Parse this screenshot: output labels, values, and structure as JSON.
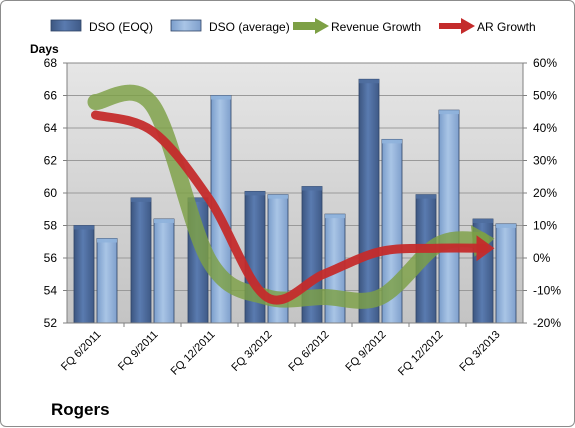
{
  "company": "Rogers",
  "chart_data": {
    "type": "bar",
    "categories": [
      "FQ 6/2011",
      "FQ 9/2011",
      "FQ 12/2011",
      "FQ 3/2012",
      "FQ 6/2012",
      "FQ 9/2012",
      "FQ 12/2012",
      "FQ 3/2013"
    ],
    "ylabel": "Days",
    "ylim": [
      52,
      68
    ],
    "y_ticks": [
      "52",
      "54",
      "56",
      "58",
      "60",
      "62",
      "64",
      "66",
      "68"
    ],
    "y2lim": [
      -20,
      60
    ],
    "y2_ticks": [
      "-20%",
      "-10%",
      "0%",
      "10%",
      "20%",
      "30%",
      "40%",
      "50%",
      "60%"
    ],
    "grid": true,
    "legend_position": "top",
    "series": [
      {
        "name": "DSO (EOQ)",
        "kind": "bar",
        "axis": "left",
        "color": "#4f6e9f",
        "values": [
          58.0,
          59.7,
          59.7,
          60.1,
          60.4,
          67.0,
          59.9,
          58.4
        ]
      },
      {
        "name": "DSO (average)",
        "kind": "bar",
        "axis": "left",
        "color": "#8fb2dc",
        "values": [
          57.2,
          58.4,
          66.0,
          59.9,
          58.7,
          63.3,
          65.1,
          58.1
        ]
      },
      {
        "name": "Revenue Growth",
        "kind": "line",
        "axis": "right",
        "color": "#7da045",
        "values": [
          48,
          47,
          -1,
          -12,
          -12,
          -12,
          4,
          6
        ]
      },
      {
        "name": "AR Growth",
        "kind": "line",
        "axis": "right",
        "color": "#c42b2b",
        "values": [
          44,
          39,
          18,
          -12,
          -5,
          2,
          3,
          3
        ]
      }
    ]
  }
}
